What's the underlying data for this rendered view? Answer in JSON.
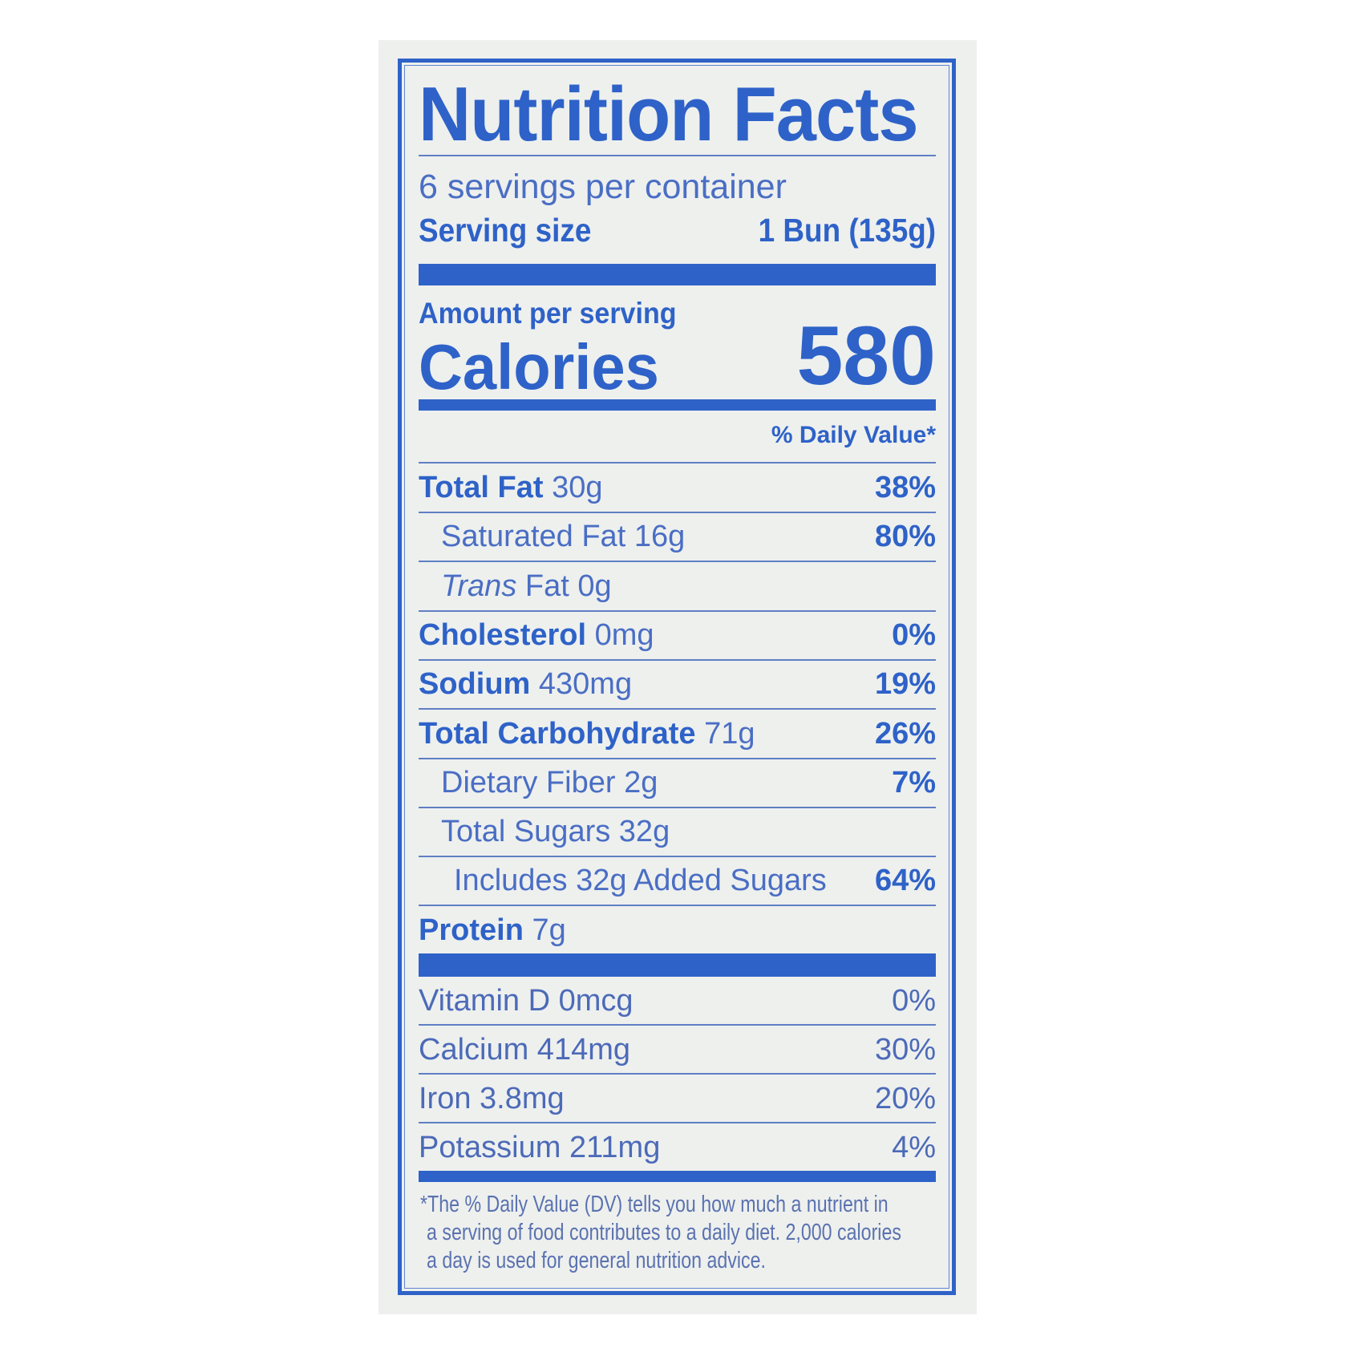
{
  "title": "Nutrition Facts",
  "servings_per_container": "6 servings per container",
  "serving_size_label": "Serving size",
  "serving_size_value": "1 Bun (135g)",
  "amount_per_serving": "Amount per serving",
  "calories_label": "Calories",
  "calories_value": "580",
  "daily_value_header": "% Daily Value*",
  "nutrients": [
    {
      "name": "Total Fat",
      "amount": "30g",
      "dv": "38%"
    },
    {
      "name": "Saturated Fat",
      "amount": "16g",
      "dv": "80%"
    },
    {
      "name": "Trans",
      "suffix": "Fat",
      "amount": "0g",
      "dv": ""
    },
    {
      "name": "Cholesterol",
      "amount": "0mg",
      "dv": "0%"
    },
    {
      "name": "Sodium",
      "amount": "430mg",
      "dv": "19%"
    },
    {
      "name": "Total Carbohydrate",
      "amount": "71g",
      "dv": "26%"
    },
    {
      "name": "Dietary Fiber",
      "amount": "2g",
      "dv": "7%"
    },
    {
      "name": "Total Sugars",
      "amount": "32g",
      "dv": ""
    },
    {
      "name": "Includes 32g Added Sugars",
      "amount": "",
      "dv": "64%"
    },
    {
      "name": "Protein",
      "amount": "7g",
      "dv": ""
    }
  ],
  "vitamins": [
    {
      "name": "Vitamin D 0mcg",
      "dv": "0%"
    },
    {
      "name": "Calcium 414mg",
      "dv": "30%"
    },
    {
      "name": "Iron 3.8mg",
      "dv": "20%"
    },
    {
      "name": "Potassium 211mg",
      "dv": "4%"
    }
  ],
  "footnote": [
    "*The % Daily Value (DV) tells you how much a nutrient in",
    "a serving of food contributes to a daily diet. 2,000 calories",
    "a day is used for general nutrition advice."
  ],
  "colors": {
    "ink": "#2e62c8",
    "background": "#eef0ee"
  }
}
